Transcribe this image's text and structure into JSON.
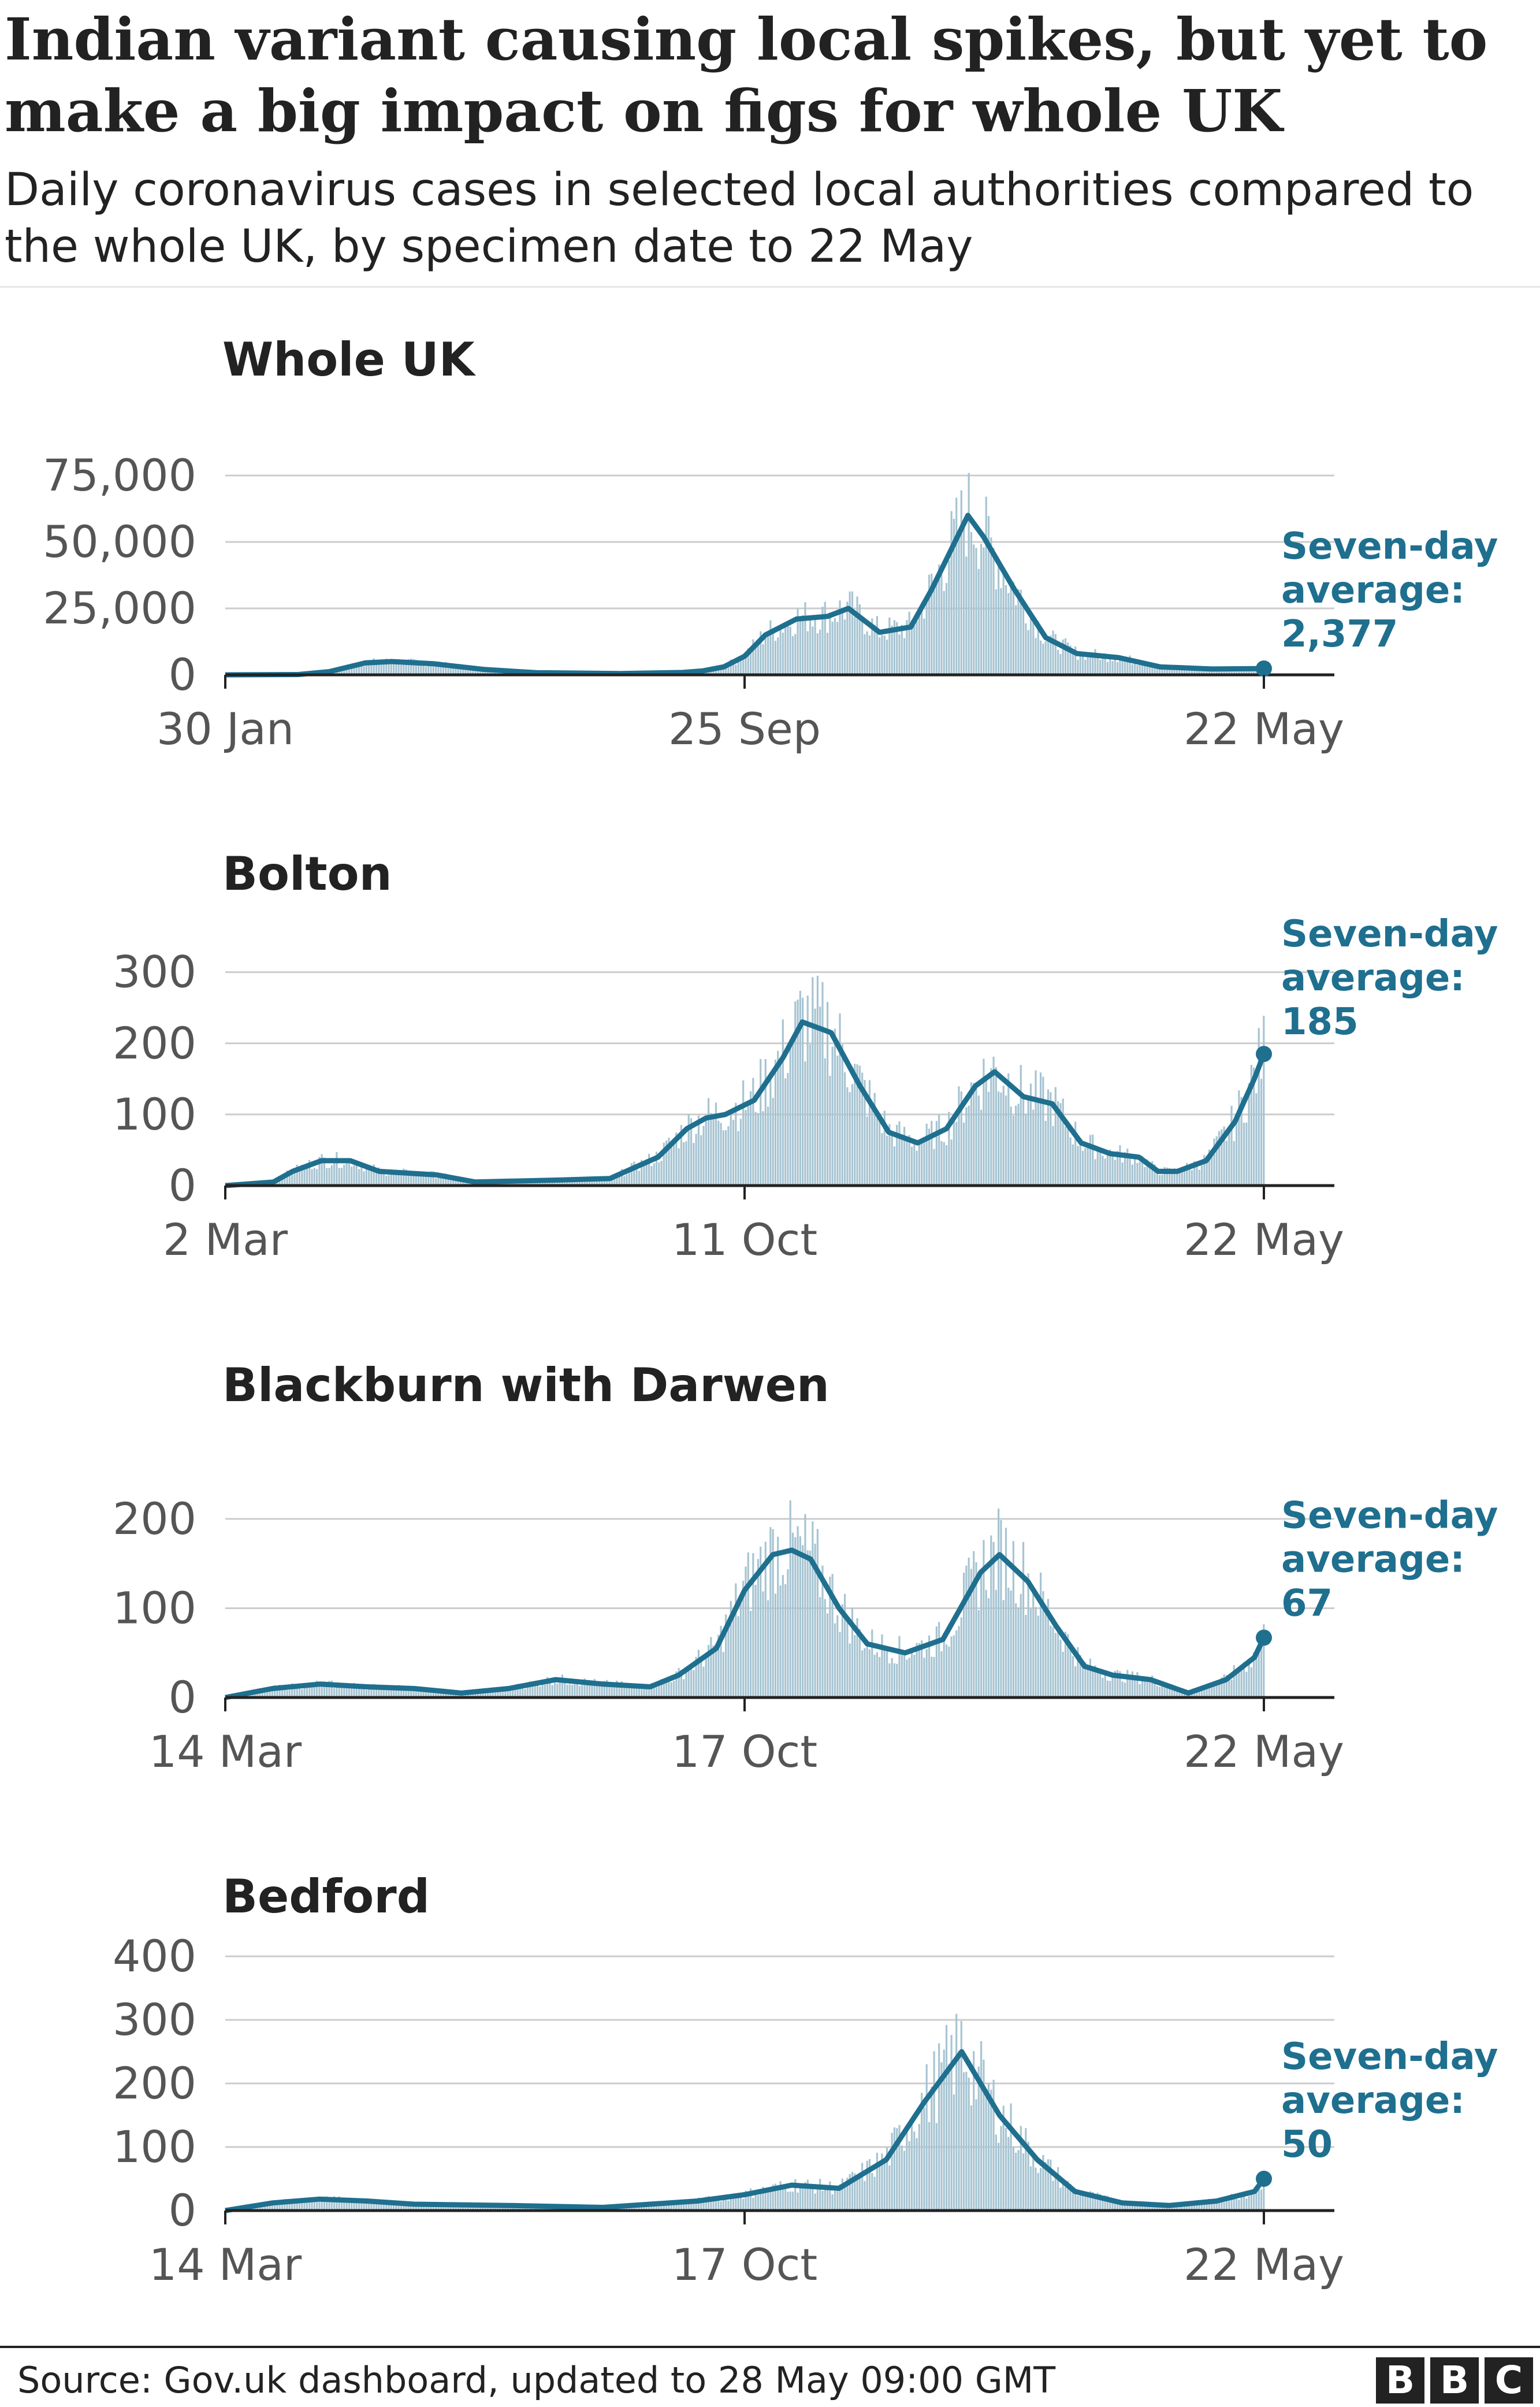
{
  "title": "Indian variant causing local spikes, but yet to make a big impact on figs for whole UK",
  "subtitle": "Daily coronavirus cases in selected local authorities compared to the whole UK, by specimen date to 22 May",
  "source": "Source: Gov.uk dashboard, updated to 28 May 09:00 GMT",
  "logo": {
    "letters": [
      "B",
      "B",
      "C"
    ]
  },
  "colors": {
    "bars": "#a7c4d2",
    "line": "#1f6f8f",
    "annotation": "#1f6f8f",
    "grid": "#cccccc",
    "axis": "#222222"
  },
  "chart_data": [
    {
      "type": "bar",
      "title": "Whole UK",
      "x_ticks": [
        "30 Jan",
        "25 Sep",
        "22 May"
      ],
      "y_ticks": [
        0,
        25000,
        50000,
        75000
      ],
      "y_tick_labels": [
        "0",
        "25,000",
        "50,000",
        "75,000"
      ],
      "ylim": [
        0,
        80000
      ],
      "x_start": "30 Jan",
      "x_end": "22 May",
      "bar_color": "#a7c4d2",
      "line_color": "#1f6f8f",
      "series_bars": "Daily cases",
      "series_line": "Seven-day average",
      "annotation": [
        "Seven-day",
        "average:",
        "2,377"
      ],
      "last_value": 2377,
      "line_points": [
        [
          0,
          0
        ],
        [
          0.07,
          100
        ],
        [
          0.1,
          1200
        ],
        [
          0.135,
          4500
        ],
        [
          0.16,
          5000
        ],
        [
          0.2,
          4200
        ],
        [
          0.25,
          2000
        ],
        [
          0.3,
          800
        ],
        [
          0.38,
          500
        ],
        [
          0.44,
          900
        ],
        [
          0.46,
          1500
        ],
        [
          0.48,
          3000
        ],
        [
          0.5,
          7000
        ],
        [
          0.52,
          15000
        ],
        [
          0.55,
          21000
        ],
        [
          0.58,
          22000
        ],
        [
          0.6,
          25000
        ],
        [
          0.63,
          16000
        ],
        [
          0.66,
          18000
        ],
        [
          0.68,
          32000
        ],
        [
          0.7,
          48000
        ],
        [
          0.715,
          60000
        ],
        [
          0.73,
          52000
        ],
        [
          0.76,
          32000
        ],
        [
          0.79,
          14000
        ],
        [
          0.82,
          8000
        ],
        [
          0.86,
          6500
        ],
        [
          0.9,
          3000
        ],
        [
          0.95,
          2200
        ],
        [
          1.0,
          2377
        ]
      ]
    },
    {
      "type": "bar",
      "title": "Bolton",
      "x_ticks": [
        "2 Mar",
        "11 Oct",
        "22 May"
      ],
      "y_ticks": [
        0,
        100,
        200,
        300
      ],
      "y_tick_labels": [
        "0",
        "100",
        "200",
        "300"
      ],
      "ylim": [
        0,
        320
      ],
      "x_start": "2 Mar",
      "x_end": "22 May",
      "bar_color": "#a7c4d2",
      "line_color": "#1f6f8f",
      "series_bars": "Daily cases",
      "series_line": "Seven-day average",
      "annotation": [
        "Seven-day",
        "average:",
        "185"
      ],
      "last_value": 185,
      "line_points": [
        [
          0,
          0
        ],
        [
          0.05,
          5
        ],
        [
          0.07,
          20
        ],
        [
          0.1,
          35
        ],
        [
          0.13,
          35
        ],
        [
          0.16,
          20
        ],
        [
          0.22,
          15
        ],
        [
          0.26,
          5
        ],
        [
          0.35,
          8
        ],
        [
          0.4,
          10
        ],
        [
          0.4,
          10
        ],
        [
          0.45,
          40
        ],
        [
          0.48,
          80
        ],
        [
          0.5,
          95
        ],
        [
          0.52,
          100
        ],
        [
          0.55,
          120
        ],
        [
          0.58,
          180
        ],
        [
          0.6,
          230
        ],
        [
          0.63,
          215
        ],
        [
          0.66,
          140
        ],
        [
          0.69,
          75
        ],
        [
          0.72,
          60
        ],
        [
          0.75,
          80
        ],
        [
          0.78,
          140
        ],
        [
          0.8,
          160
        ],
        [
          0.83,
          125
        ],
        [
          0.86,
          115
        ],
        [
          0.89,
          60
        ],
        [
          0.92,
          45
        ],
        [
          0.95,
          40
        ],
        [
          0.97,
          20
        ],
        [
          0.99,
          20
        ],
        [
          1.02,
          35
        ],
        [
          1.05,
          90
        ],
        [
          1.07,
          150
        ],
        [
          1.08,
          185
        ]
      ]
    },
    {
      "type": "bar",
      "title": "Blackburn with Darwen",
      "x_ticks": [
        "14 Mar",
        "17 Oct",
        "22 May"
      ],
      "y_ticks": [
        0,
        100,
        200
      ],
      "y_tick_labels": [
        "0",
        "100",
        "200"
      ],
      "ylim": [
        0,
        220
      ],
      "x_start": "14 Mar",
      "x_end": "22 May",
      "bar_color": "#a7c4d2",
      "line_color": "#1f6f8f",
      "series_bars": "Daily cases",
      "series_line": "Seven-day average",
      "annotation": [
        "Seven-day",
        "average:",
        "67"
      ],
      "last_value": 67,
      "line_points": [
        [
          0,
          0
        ],
        [
          0.05,
          10
        ],
        [
          0.1,
          15
        ],
        [
          0.15,
          12
        ],
        [
          0.2,
          10
        ],
        [
          0.25,
          5
        ],
        [
          0.3,
          10
        ],
        [
          0.35,
          20
        ],
        [
          0.4,
          15
        ],
        [
          0.45,
          12
        ],
        [
          0.48,
          25
        ],
        [
          0.52,
          55
        ],
        [
          0.55,
          120
        ],
        [
          0.58,
          160
        ],
        [
          0.6,
          165
        ],
        [
          0.62,
          155
        ],
        [
          0.65,
          100
        ],
        [
          0.68,
          60
        ],
        [
          0.72,
          50
        ],
        [
          0.76,
          65
        ],
        [
          0.8,
          140
        ],
        [
          0.82,
          160
        ],
        [
          0.85,
          130
        ],
        [
          0.88,
          80
        ],
        [
          0.91,
          35
        ],
        [
          0.94,
          25
        ],
        [
          0.98,
          20
        ],
        [
          1.02,
          5
        ],
        [
          1.06,
          20
        ],
        [
          1.09,
          45
        ],
        [
          1.1,
          67
        ]
      ]
    },
    {
      "type": "bar",
      "title": "Bedford",
      "x_ticks": [
        "14 Mar",
        "17 Oct",
        "22 May"
      ],
      "y_ticks": [
        0,
        100,
        200,
        300,
        400
      ],
      "y_tick_labels": [
        "0",
        "100",
        "200",
        "300",
        "400"
      ],
      "ylim": [
        0,
        400
      ],
      "x_start": "14 Mar",
      "x_end": "22 May",
      "bar_color": "#a7c4d2",
      "line_color": "#1f6f8f",
      "series_bars": "Daily cases",
      "series_line": "Seven-day average",
      "annotation": [
        "Seven-day",
        "average:",
        "50"
      ],
      "last_value": 50,
      "line_points": [
        [
          0,
          0
        ],
        [
          0.05,
          12
        ],
        [
          0.1,
          18
        ],
        [
          0.15,
          15
        ],
        [
          0.2,
          10
        ],
        [
          0.3,
          8
        ],
        [
          0.4,
          5
        ],
        [
          0.45,
          10
        ],
        [
          0.5,
          15
        ],
        [
          0.55,
          25
        ],
        [
          0.6,
          40
        ],
        [
          0.65,
          35
        ],
        [
          0.7,
          80
        ],
        [
          0.74,
          170
        ],
        [
          0.78,
          250
        ],
        [
          0.82,
          150
        ],
        [
          0.86,
          80
        ],
        [
          0.9,
          30
        ],
        [
          0.95,
          12
        ],
        [
          1.0,
          8
        ],
        [
          1.05,
          15
        ],
        [
          1.09,
          30
        ],
        [
          1.1,
          50
        ]
      ]
    }
  ]
}
